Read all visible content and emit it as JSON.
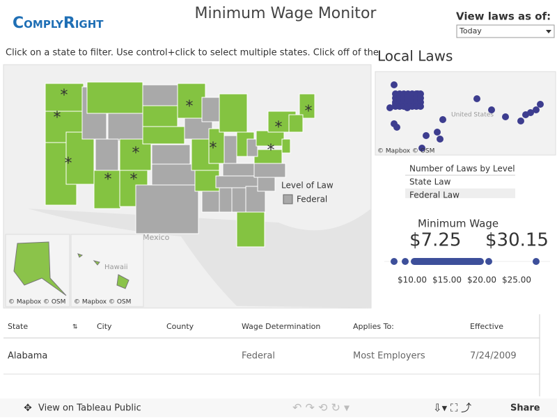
{
  "header": {
    "logo": "ComplyRight",
    "title": "Minimum Wage Monitor",
    "date_label": "View laws as of:",
    "date_value": "Today"
  },
  "instruction": "Click on a state to filter. Use control+click to select multiple states. Click off of the",
  "map": {
    "labels": [
      "Mexico",
      "Hawaii"
    ],
    "attribution": [
      "© Mapbox  © OSM",
      "© Mapbox  © OSM",
      "© Mapbox  © OSM"
    ],
    "markers": [
      "*",
      "*",
      "*",
      "*",
      "*",
      "*",
      "*",
      "*",
      "*",
      "*",
      "*"
    ],
    "legend": {
      "title": "Level of Law",
      "items": [
        "Federal"
      ]
    }
  },
  "local_laws": {
    "title": "Local Laws",
    "attribution": "© Mapbox  © OSM",
    "map_label": "United States",
    "level_title": "Number of Laws by Level",
    "levels": [
      "State Law",
      "Federal Law"
    ]
  },
  "minimum_wage": {
    "title": "Minimum Wage",
    "low": "$7.25",
    "high": "$30.15",
    "ticks": [
      "$10.00",
      "$15.00",
      "$20.00",
      "$25.00"
    ]
  },
  "table": {
    "headers": [
      "State",
      "City",
      "County",
      "Wage Determination",
      "Applies To:",
      "Effective"
    ],
    "rows": [
      [
        "Alabama",
        "",
        "",
        "Federal",
        "Most Employers",
        "7/24/2009"
      ]
    ]
  },
  "toolbar": {
    "view": "View on Tableau Public",
    "share": "Share"
  }
}
